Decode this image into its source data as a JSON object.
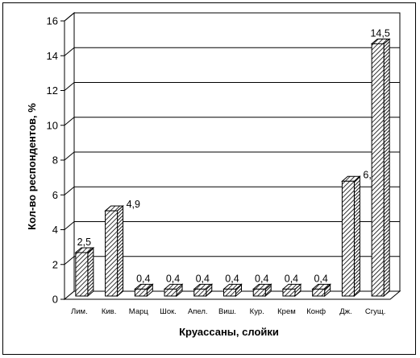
{
  "chart_data": {
    "type": "bar",
    "title": "",
    "xlabel": "Круассаны, слойки",
    "ylabel": "Кол-во респондентов, %",
    "categories": [
      "Лим.",
      "Кив.",
      "Марц",
      "Шок.",
      "Апел.",
      "Виш.",
      "Кур.",
      "Крем",
      "Конф",
      "Дж.",
      "Сгущ."
    ],
    "values": [
      2.5,
      4.9,
      0.4,
      0.4,
      0.4,
      0.4,
      0.4,
      0.4,
      0.4,
      6.6,
      14.5
    ],
    "data_labels": [
      "2,5",
      "4,9",
      "0,4",
      "0,4",
      "0,4",
      "0,4",
      "0,4",
      "0,4",
      "0,4",
      "6,6",
      "14,5"
    ],
    "y_ticks": [
      0,
      2,
      4,
      6,
      8,
      10,
      12,
      14,
      16
    ],
    "ylim": [
      0,
      16
    ],
    "grid": true,
    "legend": "none",
    "bar_color": "#ffffff",
    "hatch_color": "#000000"
  }
}
